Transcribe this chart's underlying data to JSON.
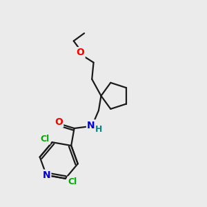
{
  "bg_color": "#ebebeb",
  "bond_color": "#1a1a1a",
  "bond_width": 1.6,
  "atom_colors": {
    "O": "#ff0000",
    "N": "#0000cc",
    "Cl": "#00aa00",
    "C": "#1a1a1a",
    "H": "#008888"
  },
  "font_size": 10,
  "small_font": 9,
  "fs_label": 10
}
